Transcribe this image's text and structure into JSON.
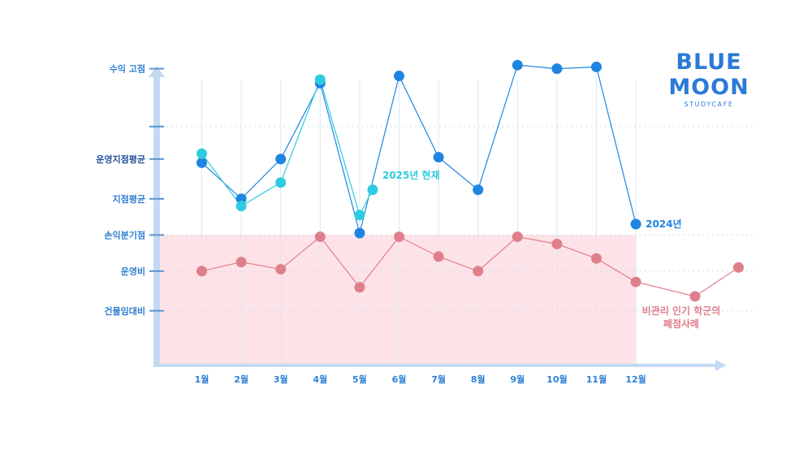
{
  "logo": {
    "line1": "BLUE",
    "line2": "MOON",
    "tagline": "STUDYCAFE"
  },
  "colors": {
    "axis": "#c3daf2",
    "series_2024": "#1f85e0",
    "series_2025": "#2fcbe0",
    "series_closed": "#e07f8c",
    "loss_zone": "#fde3e7",
    "ylabel_dark": "#23509c",
    "ylabel_light": "#2f7fd3",
    "logo": "#2a7bd6"
  },
  "chart_data": {
    "type": "line",
    "categories": [
      "1월",
      "2월",
      "3월",
      "4월",
      "5월",
      "6월",
      "7월",
      "8월",
      "9월",
      "10월",
      "11월",
      "12월"
    ],
    "y_axis_labels": [
      {
        "label": "수익 고점",
        "y": 8.3,
        "dark": false
      },
      {
        "label": "운영지점평균",
        "y": 5.8,
        "dark": true
      },
      {
        "label": "지점평균",
        "y": 4.7,
        "dark": false
      },
      {
        "label": "손익분기점",
        "y": 3.7,
        "dark": false
      },
      {
        "label": "운영비",
        "y": 2.7,
        "dark": false
      },
      {
        "label": "건물임대비",
        "y": 1.6,
        "dark": false
      }
    ],
    "ylim": [
      0,
      8.8
    ],
    "grid": true,
    "break_even": 3.7,
    "series": [
      {
        "name": "2024년",
        "points": [
          [
            1,
            5.7
          ],
          [
            2,
            4.7
          ],
          [
            3,
            5.8
          ],
          [
            4,
            7.9
          ],
          [
            5,
            3.75
          ],
          [
            6,
            8.1
          ],
          [
            7,
            5.85
          ],
          [
            8,
            4.95
          ],
          [
            9,
            8.4
          ],
          [
            10,
            8.3
          ],
          [
            11,
            8.35
          ],
          [
            12,
            4.0
          ]
        ]
      },
      {
        "name": "2025년 현재",
        "points": [
          [
            1,
            5.95
          ],
          [
            2,
            4.5
          ],
          [
            3,
            5.15
          ],
          [
            4,
            8.0
          ],
          [
            5,
            4.25
          ],
          [
            5.33,
            4.95
          ]
        ]
      },
      {
        "name": "비관리 인기 학군의\n폐점사례",
        "points": [
          [
            1,
            2.7
          ],
          [
            2,
            2.95
          ],
          [
            3,
            2.75
          ],
          [
            4,
            3.65
          ],
          [
            5,
            2.25
          ],
          [
            6,
            3.65
          ],
          [
            7,
            3.1
          ],
          [
            8,
            2.7
          ],
          [
            9,
            3.65
          ],
          [
            10,
            3.45
          ],
          [
            11,
            3.05
          ],
          [
            12,
            2.4
          ],
          [
            13.5,
            2.0
          ],
          [
            14.6,
            2.8
          ]
        ]
      }
    ],
    "series_labels": [
      "2024년",
      "2025년 현재",
      "비관리 인기 학군의",
      "폐점사례"
    ]
  }
}
